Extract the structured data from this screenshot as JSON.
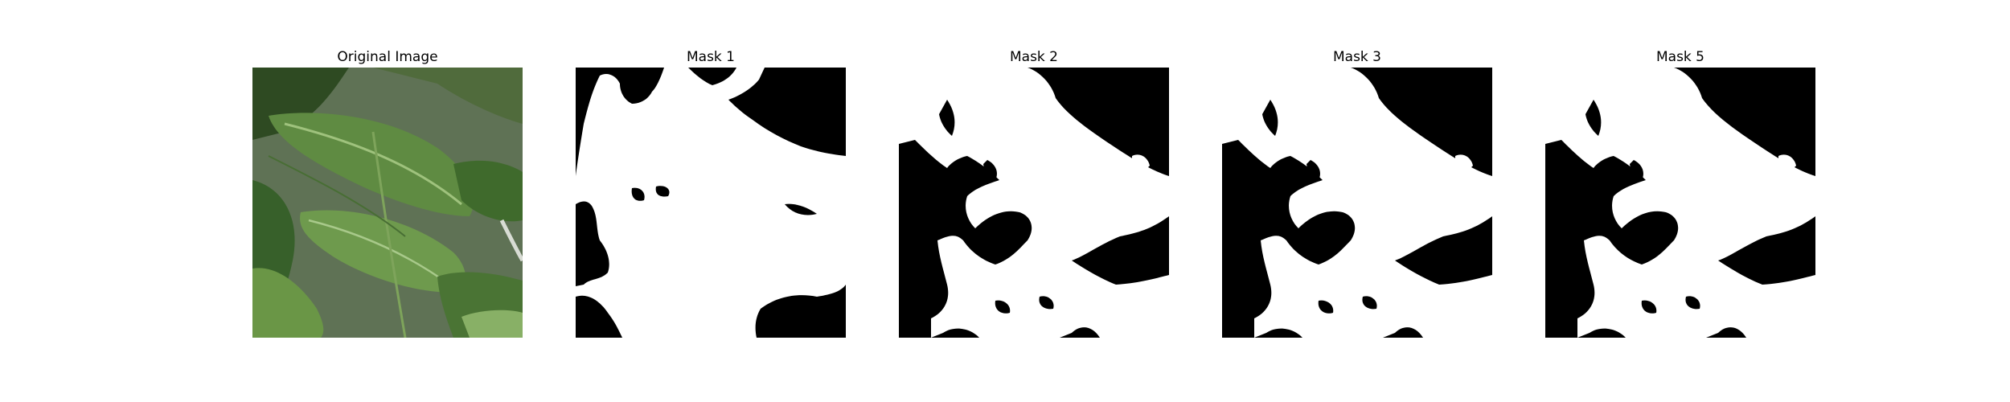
{
  "panels": [
    {
      "title": "Original Image"
    },
    {
      "title": "Mask 1"
    },
    {
      "title": "Mask 2"
    },
    {
      "title": "Mask 3"
    },
    {
      "title": "Mask 5"
    }
  ],
  "colors": {
    "mask_foreground": "#ffffff",
    "mask_background": "#000000",
    "leaf_dark": "#2f4f24",
    "leaf_mid": "#4f7a36",
    "leaf_light": "#7aa45a",
    "background_gray": "#8a8a88"
  }
}
